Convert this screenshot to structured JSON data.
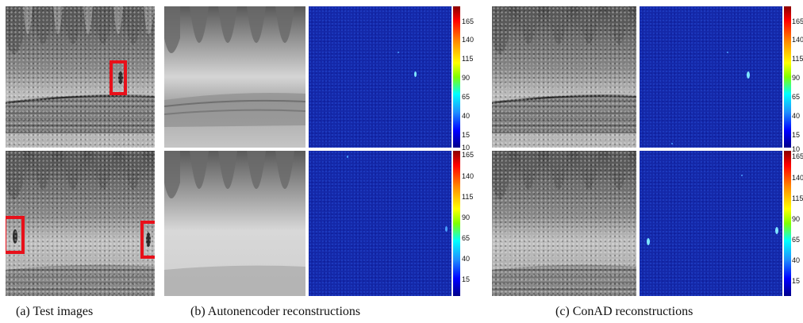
{
  "figure": {
    "captions": {
      "a": "(a) Test images",
      "b": "(b) Autonencoder reconstructions",
      "c": "(c) ConAD reconstructions"
    },
    "colorbar": {
      "ticks_top": [
        "165",
        "140",
        "115",
        "90",
        "65",
        "40",
        "15"
      ],
      "ticks_bottom_b": [
        "10",
        "165",
        "140",
        "115",
        "90",
        "65",
        "40",
        "15"
      ],
      "ticks_bottom_c": [
        "10",
        "165",
        "140",
        "115",
        "90",
        "65",
        "40",
        "15"
      ]
    },
    "colors": {
      "highlight_box": "#e8101a",
      "heatmap_background": "#1428a8",
      "anomaly_spot": "#7fe6ff"
    }
  }
}
